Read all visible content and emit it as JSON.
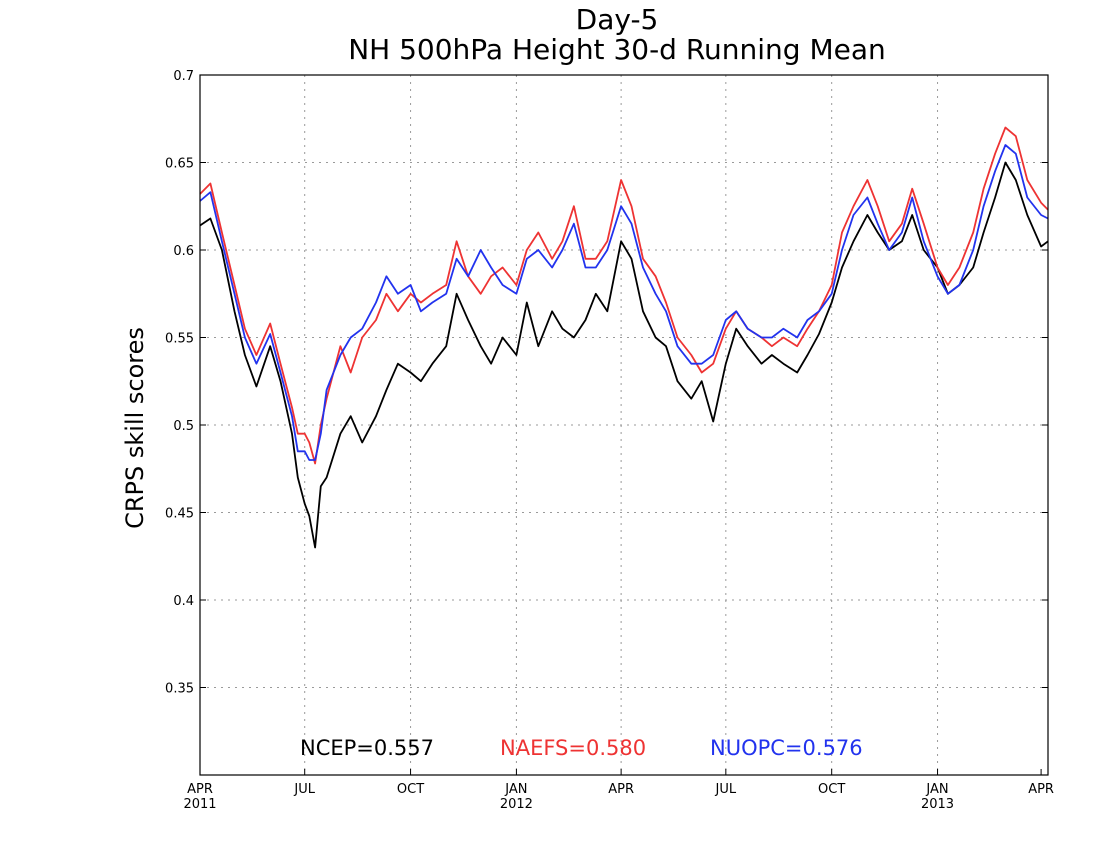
{
  "chart_data": {
    "type": "line",
    "title": "Day-5",
    "subtitle": "NH 500hPa Height 30-d Running Mean",
    "ylabel": "CRPS skill scores",
    "xlabel": "",
    "ylim": [
      0.3,
      0.7
    ],
    "xlim": [
      "2011-04-01",
      "2013-04-07"
    ],
    "yticks": [
      0.35,
      0.4,
      0.45,
      0.5,
      0.55,
      0.6,
      0.65,
      0.7
    ],
    "grid": true,
    "xticks": [
      {
        "date": "2011-04-01",
        "label": "APR",
        "sublabel": "2011"
      },
      {
        "date": "2011-07-01",
        "label": "JUL",
        "sublabel": ""
      },
      {
        "date": "2011-10-01",
        "label": "OCT",
        "sublabel": ""
      },
      {
        "date": "2012-01-01",
        "label": "JAN",
        "sublabel": "2012"
      },
      {
        "date": "2012-04-01",
        "label": "APR",
        "sublabel": ""
      },
      {
        "date": "2012-07-01",
        "label": "JUL",
        "sublabel": ""
      },
      {
        "date": "2012-10-01",
        "label": "OCT",
        "sublabel": ""
      },
      {
        "date": "2013-01-01",
        "label": "JAN",
        "sublabel": "2013"
      },
      {
        "date": "2013-04-01",
        "label": "APR",
        "sublabel": ""
      }
    ],
    "legend_position": "bottom-center",
    "legend": [
      "NCEP=0.557",
      "NAEFS=0.580",
      "NUOPC=0.576"
    ],
    "series": [
      {
        "color": "#000000",
        "x": [
          "2011-04-01",
          "2011-04-10",
          "2011-04-20",
          "2011-05-01",
          "2011-05-10",
          "2011-05-20",
          "2011-06-01",
          "2011-06-10",
          "2011-06-20",
          "2011-06-25",
          "2011-07-01",
          "2011-07-05",
          "2011-07-10",
          "2011-07-15",
          "2011-07-20",
          "2011-08-01",
          "2011-08-10",
          "2011-08-20",
          "2011-09-01",
          "2011-09-10",
          "2011-09-20",
          "2011-10-01",
          "2011-10-10",
          "2011-10-20",
          "2011-11-01",
          "2011-11-10",
          "2011-11-20",
          "2011-12-01",
          "2011-12-10",
          "2011-12-20",
          "2012-01-01",
          "2012-01-10",
          "2012-01-20",
          "2012-02-01",
          "2012-02-10",
          "2012-02-20",
          "2012-03-01",
          "2012-03-10",
          "2012-03-20",
          "2012-04-01",
          "2012-04-10",
          "2012-04-20",
          "2012-05-01",
          "2012-05-10",
          "2012-05-20",
          "2012-06-01",
          "2012-06-10",
          "2012-06-20",
          "2012-07-01",
          "2012-07-10",
          "2012-07-20",
          "2012-08-01",
          "2012-08-10",
          "2012-08-20",
          "2012-09-01",
          "2012-09-10",
          "2012-09-20",
          "2012-10-01",
          "2012-10-10",
          "2012-10-20",
          "2012-11-01",
          "2012-11-10",
          "2012-11-20",
          "2012-12-01",
          "2012-12-10",
          "2012-12-20",
          "2013-01-01",
          "2013-01-10",
          "2013-01-20",
          "2013-02-01",
          "2013-02-10",
          "2013-02-20",
          "2013-03-01",
          "2013-03-10",
          "2013-03-20",
          "2013-04-01",
          "2013-04-07"
        ],
        "values": [
          0.614,
          0.618,
          0.6,
          0.565,
          0.54,
          0.522,
          0.545,
          0.525,
          0.495,
          0.47,
          0.455,
          0.448,
          0.43,
          0.465,
          0.47,
          0.495,
          0.505,
          0.49,
          0.505,
          0.52,
          0.535,
          0.53,
          0.525,
          0.535,
          0.545,
          0.575,
          0.56,
          0.545,
          0.535,
          0.55,
          0.54,
          0.57,
          0.545,
          0.565,
          0.555,
          0.55,
          0.56,
          0.575,
          0.565,
          0.605,
          0.595,
          0.565,
          0.55,
          0.545,
          0.525,
          0.515,
          0.525,
          0.502,
          0.535,
          0.555,
          0.545,
          0.535,
          0.54,
          0.535,
          0.53,
          0.54,
          0.552,
          0.57,
          0.59,
          0.605,
          0.62,
          0.61,
          0.6,
          0.605,
          0.62,
          0.6,
          0.59,
          0.575,
          0.58,
          0.59,
          0.61,
          0.63,
          0.65,
          0.64,
          0.62,
          0.602,
          0.605
        ]
      },
      {
        "color": "#ee3333",
        "x": [
          "2011-04-01",
          "2011-04-10",
          "2011-04-20",
          "2011-05-01",
          "2011-05-10",
          "2011-05-20",
          "2011-06-01",
          "2011-06-10",
          "2011-06-20",
          "2011-06-25",
          "2011-07-01",
          "2011-07-05",
          "2011-07-10",
          "2011-07-15",
          "2011-07-20",
          "2011-08-01",
          "2011-08-10",
          "2011-08-20",
          "2011-09-01",
          "2011-09-10",
          "2011-09-20",
          "2011-10-01",
          "2011-10-10",
          "2011-10-20",
          "2011-11-01",
          "2011-11-10",
          "2011-11-20",
          "2011-12-01",
          "2011-12-10",
          "2011-12-20",
          "2012-01-01",
          "2012-01-10",
          "2012-01-20",
          "2012-02-01",
          "2012-02-10",
          "2012-02-20",
          "2012-03-01",
          "2012-03-10",
          "2012-03-20",
          "2012-04-01",
          "2012-04-10",
          "2012-04-20",
          "2012-05-01",
          "2012-05-10",
          "2012-05-20",
          "2012-06-01",
          "2012-06-10",
          "2012-06-20",
          "2012-07-01",
          "2012-07-10",
          "2012-07-20",
          "2012-08-01",
          "2012-08-10",
          "2012-08-20",
          "2012-09-01",
          "2012-09-10",
          "2012-09-20",
          "2012-10-01",
          "2012-10-10",
          "2012-10-20",
          "2012-11-01",
          "2012-11-10",
          "2012-11-20",
          "2012-12-01",
          "2012-12-10",
          "2012-12-20",
          "2013-01-01",
          "2013-01-10",
          "2013-01-20",
          "2013-02-01",
          "2013-02-10",
          "2013-02-20",
          "2013-03-01",
          "2013-03-10",
          "2013-03-20",
          "2013-04-01",
          "2013-04-07"
        ],
        "values": [
          0.632,
          0.638,
          0.61,
          0.58,
          0.555,
          0.54,
          0.558,
          0.535,
          0.51,
          0.495,
          0.495,
          0.49,
          0.478,
          0.5,
          0.515,
          0.545,
          0.53,
          0.55,
          0.56,
          0.575,
          0.565,
          0.575,
          0.57,
          0.575,
          0.58,
          0.605,
          0.585,
          0.575,
          0.585,
          0.59,
          0.58,
          0.6,
          0.61,
          0.595,
          0.605,
          0.625,
          0.595,
          0.595,
          0.605,
          0.64,
          0.625,
          0.595,
          0.585,
          0.57,
          0.55,
          0.54,
          0.53,
          0.535,
          0.555,
          0.565,
          0.555,
          0.55,
          0.545,
          0.55,
          0.545,
          0.555,
          0.565,
          0.58,
          0.61,
          0.625,
          0.64,
          0.625,
          0.605,
          0.615,
          0.635,
          0.615,
          0.59,
          0.58,
          0.59,
          0.61,
          0.635,
          0.655,
          0.67,
          0.665,
          0.64,
          0.627,
          0.623
        ]
      },
      {
        "color": "#2233ee",
        "x": [
          "2011-04-01",
          "2011-04-10",
          "2011-04-20",
          "2011-05-01",
          "2011-05-10",
          "2011-05-20",
          "2011-06-01",
          "2011-06-10",
          "2011-06-20",
          "2011-06-25",
          "2011-07-01",
          "2011-07-05",
          "2011-07-10",
          "2011-07-15",
          "2011-07-20",
          "2011-08-01",
          "2011-08-10",
          "2011-08-20",
          "2011-09-01",
          "2011-09-10",
          "2011-09-20",
          "2011-10-01",
          "2011-10-10",
          "2011-10-20",
          "2011-11-01",
          "2011-11-10",
          "2011-11-20",
          "2011-12-01",
          "2011-12-10",
          "2011-12-20",
          "2012-01-01",
          "2012-01-10",
          "2012-01-20",
          "2012-02-01",
          "2012-02-10",
          "2012-02-20",
          "2012-03-01",
          "2012-03-10",
          "2012-03-20",
          "2012-04-01",
          "2012-04-10",
          "2012-04-20",
          "2012-05-01",
          "2012-05-10",
          "2012-05-20",
          "2012-06-01",
          "2012-06-10",
          "2012-06-20",
          "2012-07-01",
          "2012-07-10",
          "2012-07-20",
          "2012-08-01",
          "2012-08-10",
          "2012-08-20",
          "2012-09-01",
          "2012-09-10",
          "2012-09-20",
          "2012-10-01",
          "2012-10-10",
          "2012-10-20",
          "2012-11-01",
          "2012-11-10",
          "2012-11-20",
          "2012-12-01",
          "2012-12-10",
          "2012-12-20",
          "2013-01-01",
          "2013-01-10",
          "2013-01-20",
          "2013-02-01",
          "2013-02-10",
          "2013-02-20",
          "2013-03-01",
          "2013-03-10",
          "2013-03-20",
          "2013-04-01",
          "2013-04-07"
        ],
        "values": [
          0.628,
          0.633,
          0.605,
          0.575,
          0.55,
          0.535,
          0.552,
          0.53,
          0.505,
          0.485,
          0.485,
          0.48,
          0.48,
          0.495,
          0.52,
          0.54,
          0.55,
          0.555,
          0.57,
          0.585,
          0.575,
          0.58,
          0.565,
          0.57,
          0.575,
          0.595,
          0.585,
          0.6,
          0.59,
          0.58,
          0.575,
          0.595,
          0.6,
          0.59,
          0.6,
          0.615,
          0.59,
          0.59,
          0.6,
          0.625,
          0.615,
          0.59,
          0.575,
          0.565,
          0.545,
          0.535,
          0.535,
          0.54,
          0.56,
          0.565,
          0.555,
          0.55,
          0.55,
          0.555,
          0.55,
          0.56,
          0.565,
          0.575,
          0.6,
          0.62,
          0.63,
          0.615,
          0.6,
          0.61,
          0.63,
          0.605,
          0.585,
          0.575,
          0.58,
          0.6,
          0.625,
          0.645,
          0.66,
          0.655,
          0.63,
          0.62,
          0.618
        ]
      }
    ]
  }
}
